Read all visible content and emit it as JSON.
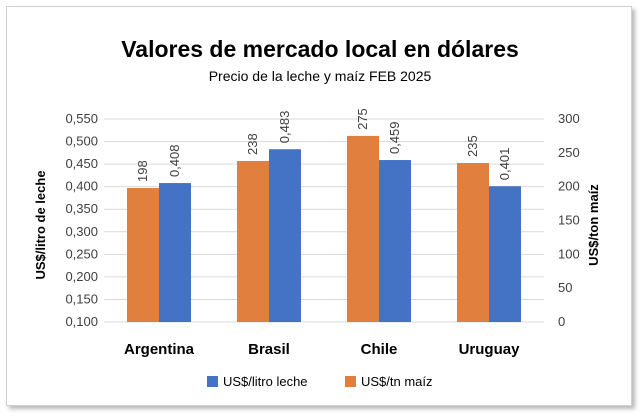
{
  "colors": {
    "leche": "#4472C4",
    "maiz": "#E07F3E",
    "grid": "#d9d9d9"
  },
  "chart_data": {
    "type": "bar",
    "title": "Valores de mercado local en dólares",
    "subtitle": "Precio de la leche y maíz FEB 2025",
    "categories": [
      "Argentina",
      "Brasil",
      "Chile",
      "Uruguay"
    ],
    "series": [
      {
        "name": "US$/litro leche",
        "axis": "left",
        "values": [
          0.408,
          0.483,
          0.459,
          0.401
        ],
        "labels": [
          "0,408",
          "0,483",
          "0,459",
          "0,401"
        ]
      },
      {
        "name": "US$/tn maíz",
        "axis": "right",
        "values": [
          198,
          238,
          275,
          235
        ],
        "labels": [
          "198",
          "238",
          "275",
          "235"
        ]
      }
    ],
    "ylabel": "US$/litro de leche",
    "y2label": "US$/ton maíz",
    "ylim": [
      0.1,
      0.55
    ],
    "y2lim": [
      0,
      300
    ],
    "yticks": [
      "0,100",
      "0,150",
      "0,200",
      "0,250",
      "0,300",
      "0,350",
      "0,400",
      "0,450",
      "0,500",
      "0,550"
    ],
    "y2ticks": [
      "0",
      "50",
      "100",
      "150",
      "200",
      "250",
      "300"
    ],
    "grid": true,
    "legend": "bottom"
  }
}
